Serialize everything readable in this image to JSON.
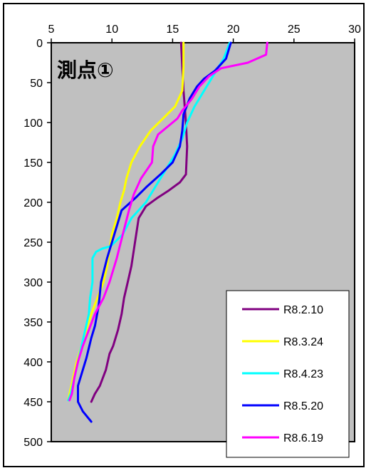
{
  "chart_data": {
    "type": "line",
    "title": "",
    "annotation": "測点①",
    "xlabel": "",
    "ylabel": "",
    "xlim": [
      5,
      30
    ],
    "ylim": [
      0,
      500
    ],
    "y_inverted": true,
    "x_ticks": [
      5,
      10,
      15,
      20,
      25,
      30
    ],
    "y_ticks": [
      0,
      50,
      100,
      150,
      200,
      250,
      300,
      350,
      400,
      450,
      500
    ],
    "x_axis_position": "top",
    "plot_background": "#c0c0c0",
    "grid": false,
    "legend_position": "bottom-right",
    "series": [
      {
        "name": "R8.2.10",
        "color": "#800080",
        "points": [
          [
            15.7,
            0
          ],
          [
            15.8,
            30
          ],
          [
            15.9,
            60
          ],
          [
            16.0,
            80
          ],
          [
            16.1,
            100
          ],
          [
            16.2,
            130
          ],
          [
            16.1,
            165
          ],
          [
            15.6,
            175
          ],
          [
            14.7,
            185
          ],
          [
            13.7,
            195
          ],
          [
            12.8,
            205
          ],
          [
            12.2,
            220
          ],
          [
            12.0,
            240
          ],
          [
            11.8,
            260
          ],
          [
            11.6,
            280
          ],
          [
            11.3,
            300
          ],
          [
            11.0,
            320
          ],
          [
            10.8,
            340
          ],
          [
            10.5,
            360
          ],
          [
            10.1,
            380
          ],
          [
            9.8,
            390
          ],
          [
            9.5,
            410
          ],
          [
            9.0,
            430
          ],
          [
            8.6,
            440
          ],
          [
            8.3,
            450
          ]
        ]
      },
      {
        "name": "R8.3.24",
        "color": "#ffff00",
        "points": [
          [
            15.9,
            0
          ],
          [
            15.9,
            30
          ],
          [
            15.8,
            60
          ],
          [
            15.2,
            80
          ],
          [
            14.2,
            95
          ],
          [
            13.2,
            110
          ],
          [
            12.3,
            130
          ],
          [
            11.6,
            150
          ],
          [
            11.2,
            170
          ],
          [
            11.0,
            185
          ],
          [
            10.7,
            200
          ],
          [
            10.4,
            220
          ],
          [
            10.0,
            240
          ],
          [
            9.8,
            260
          ],
          [
            9.6,
            280
          ],
          [
            9.3,
            300
          ],
          [
            8.8,
            320
          ],
          [
            8.3,
            340
          ],
          [
            7.9,
            360
          ],
          [
            7.5,
            380
          ],
          [
            7.1,
            400
          ],
          [
            6.8,
            420
          ],
          [
            6.5,
            440
          ],
          [
            6.4,
            448
          ]
        ]
      },
      {
        "name": "R8.4.23",
        "color": "#00ffff",
        "points": [
          [
            19.7,
            0
          ],
          [
            19.2,
            20
          ],
          [
            18.4,
            40
          ],
          [
            17.6,
            60
          ],
          [
            16.8,
            80
          ],
          [
            16.2,
            100
          ],
          [
            15.8,
            120
          ],
          [
            15.2,
            140
          ],
          [
            14.4,
            160
          ],
          [
            13.6,
            180
          ],
          [
            12.8,
            200
          ],
          [
            11.6,
            220
          ],
          [
            10.9,
            240
          ],
          [
            9.9,
            255
          ],
          [
            9.2,
            258
          ],
          [
            8.7,
            262
          ],
          [
            8.4,
            270
          ],
          [
            8.4,
            300
          ],
          [
            8.2,
            320
          ],
          [
            8.1,
            340
          ],
          [
            7.8,
            360
          ],
          [
            7.5,
            380
          ],
          [
            7.2,
            400
          ],
          [
            6.9,
            420
          ],
          [
            6.6,
            440
          ],
          [
            6.4,
            448
          ]
        ]
      },
      {
        "name": "R8.5.20",
        "color": "#0000ff",
        "points": [
          [
            19.8,
            0
          ],
          [
            19.4,
            20
          ],
          [
            18.5,
            35
          ],
          [
            17.6,
            45
          ],
          [
            17.0,
            55
          ],
          [
            16.4,
            70
          ],
          [
            15.9,
            90
          ],
          [
            15.8,
            110
          ],
          [
            15.6,
            130
          ],
          [
            15.0,
            150
          ],
          [
            14.0,
            165
          ],
          [
            12.9,
            180
          ],
          [
            11.9,
            195
          ],
          [
            10.8,
            210
          ],
          [
            10.2,
            240
          ],
          [
            9.6,
            270
          ],
          [
            9.1,
            300
          ],
          [
            8.9,
            330
          ],
          [
            8.6,
            355
          ],
          [
            8.3,
            370
          ],
          [
            7.9,
            395
          ],
          [
            7.5,
            415
          ],
          [
            7.2,
            430
          ],
          [
            7.2,
            450
          ],
          [
            7.6,
            462
          ],
          [
            8.3,
            475
          ]
        ]
      },
      {
        "name": "R8.6.19",
        "color": "#ff00ff",
        "points": [
          [
            22.8,
            0
          ],
          [
            22.7,
            15
          ],
          [
            21.2,
            25
          ],
          [
            19.0,
            32
          ],
          [
            18.0,
            42
          ],
          [
            17.2,
            55
          ],
          [
            16.6,
            70
          ],
          [
            15.8,
            85
          ],
          [
            15.4,
            95
          ],
          [
            14.6,
            105
          ],
          [
            13.8,
            115
          ],
          [
            13.4,
            130
          ],
          [
            13.3,
            150
          ],
          [
            12.4,
            170
          ],
          [
            11.8,
            190
          ],
          [
            11.4,
            210
          ],
          [
            10.9,
            240
          ],
          [
            10.4,
            270
          ],
          [
            9.8,
            300
          ],
          [
            9.3,
            320
          ],
          [
            8.6,
            340
          ],
          [
            8.1,
            360
          ],
          [
            7.6,
            380
          ],
          [
            7.2,
            400
          ],
          [
            6.9,
            420
          ],
          [
            6.7,
            440
          ],
          [
            6.5,
            448
          ]
        ]
      }
    ]
  }
}
